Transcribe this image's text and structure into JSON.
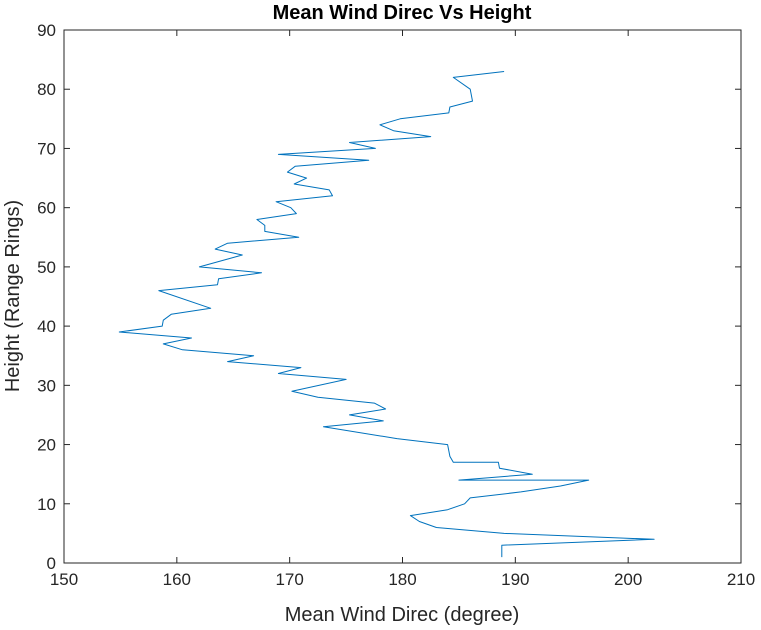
{
  "chart_data": {
    "type": "line",
    "title": "Mean Wind Direc Vs Height",
    "xlabel": "Mean Wind Direc (degree)",
    "ylabel": "Height (Range Rings)",
    "xlim": [
      150,
      210
    ],
    "ylim": [
      0,
      90
    ],
    "xticks": [
      "150",
      "160",
      "170",
      "180",
      "190",
      "200",
      "210"
    ],
    "yticks": [
      "0",
      "10",
      "20",
      "30",
      "40",
      "50",
      "60",
      "70",
      "80",
      "90"
    ],
    "grid": false,
    "series": [
      {
        "color": "#0072BD",
        "x": [
          188.8,
          188.8,
          202.3,
          189.0,
          183.0,
          181.5,
          180.7,
          184.0,
          185.5,
          186.0,
          190.5,
          194.0,
          196.5,
          185.0,
          191.5,
          188.6,
          188.5,
          184.5,
          184.2,
          184.0,
          179.5,
          173.0,
          178.3,
          175.3,
          178.5,
          177.5,
          172.5,
          170.2,
          175.0,
          169.0,
          171.0,
          164.5,
          166.8,
          160.5,
          158.8,
          161.3,
          154.9,
          158.7,
          158.8,
          159.5,
          163.0,
          158.4,
          163.6,
          163.7,
          167.5,
          162.0,
          165.8,
          163.4,
          164.5,
          170.8,
          167.8,
          167.8,
          167.1,
          170.6,
          170.1,
          168.8,
          173.8,
          173.5,
          170.4,
          171.5,
          169.8,
          170.5,
          177.0,
          169.0,
          177.6,
          175.3,
          182.5,
          179.2,
          178.0,
          179.8,
          184.1,
          184.2,
          186.2,
          186.0,
          184.5,
          189.0
        ],
        "y": [
          1,
          3,
          4,
          5,
          6,
          7,
          8,
          9,
          10,
          11,
          12,
          13,
          14,
          14,
          15,
          16,
          17,
          17,
          18,
          20,
          21,
          23,
          24,
          25,
          26,
          27,
          28,
          29,
          31,
          32,
          33,
          34,
          35,
          36,
          37,
          38,
          39,
          40,
          41,
          42,
          43,
          46,
          47,
          48,
          49,
          50,
          52,
          53,
          54,
          55,
          56,
          57,
          58,
          59,
          60,
          61,
          62,
          63,
          64,
          65,
          66,
          67,
          68,
          69,
          70,
          71,
          72,
          73,
          74,
          75,
          76,
          77,
          78,
          80,
          82,
          83
        ]
      }
    ]
  }
}
